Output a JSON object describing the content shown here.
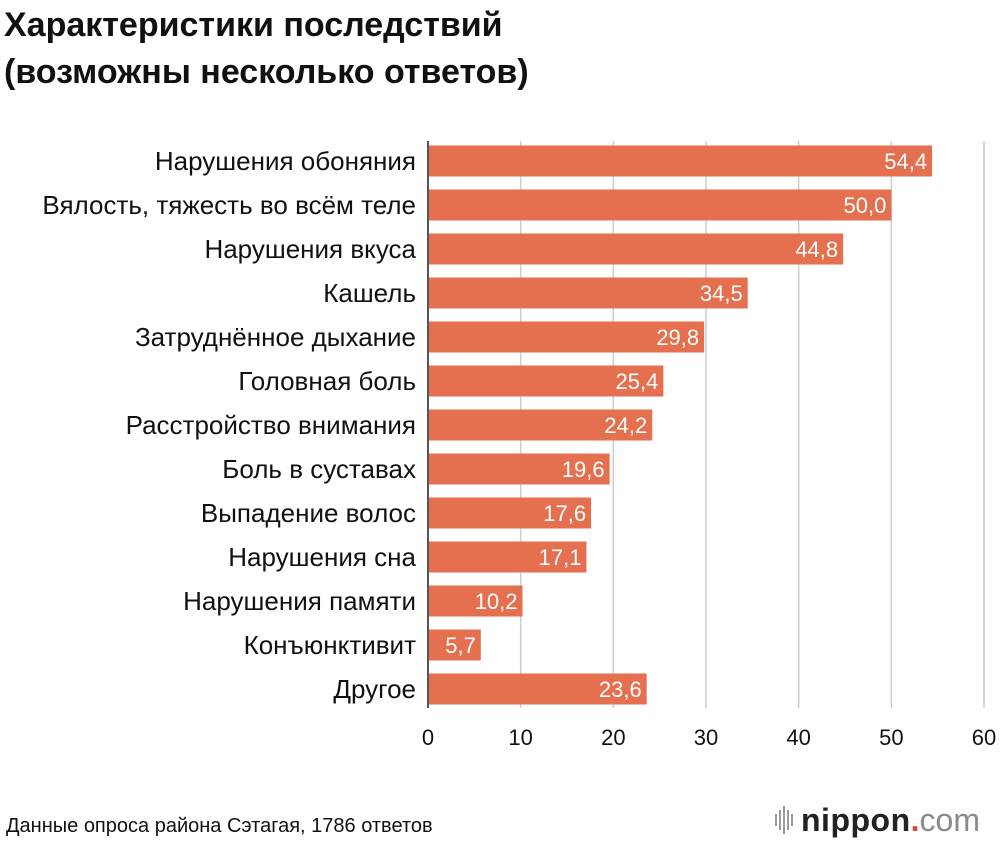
{
  "title": {
    "line1": "Характеристики последствий",
    "line2": "(возможны несколько ответов)"
  },
  "chart_data": {
    "type": "bar",
    "orientation": "horizontal",
    "categories": [
      "Нарушения обоняния",
      "Вялость, тяжесть во всём теле",
      "Нарушения вкуса",
      "Кашель",
      "Затруднённое дыхание",
      "Головная боль",
      "Расстройство внимания",
      "Боль в суставах",
      "Выпадение волос",
      "Нарушения сна",
      "Нарушения памяти",
      "Конъюнктивит",
      "Другое"
    ],
    "values": [
      54.4,
      50.0,
      44.8,
      34.5,
      29.8,
      25.4,
      24.2,
      19.6,
      17.6,
      17.1,
      10.2,
      5.7,
      23.6
    ],
    "value_labels": [
      "54,4",
      "50,0",
      "44,8",
      "34,5",
      "29,8",
      "25,4",
      "24,2",
      "19,6",
      "17,6",
      "17,1",
      "10,2",
      "5,7",
      "23,6"
    ],
    "xlim": [
      0,
      60
    ],
    "xticks": [
      "0",
      "10",
      "20",
      "30",
      "40",
      "50",
      "60"
    ],
    "grid": true,
    "xlabel": "",
    "ylabel": "",
    "bar_color": "#e5704f",
    "grid_color": "#cccccc",
    "label_color": "#ffffff"
  },
  "footer": {
    "source": "Данные опроса района Сэтагая, 1786 ответов",
    "brand_name": "nippon",
    "brand_dot": ".",
    "brand_tld": "com"
  }
}
